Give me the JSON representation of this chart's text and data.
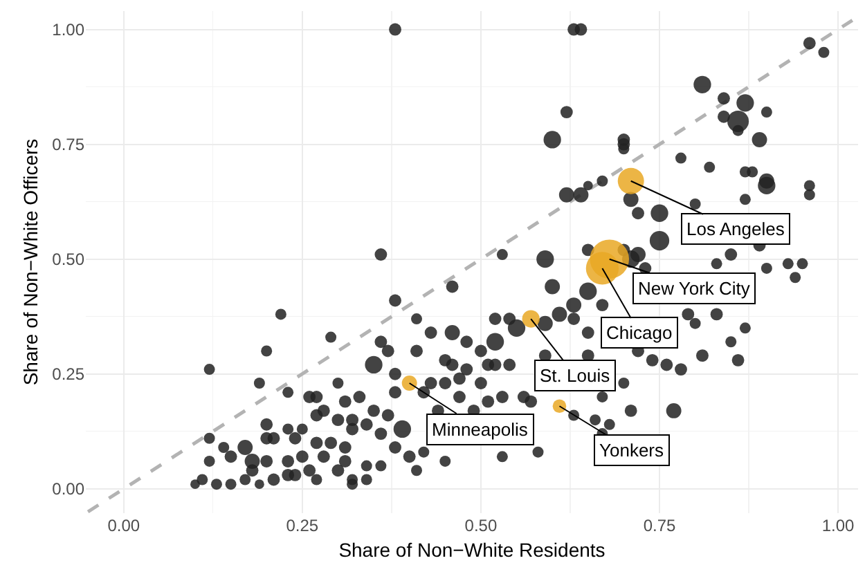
{
  "chart_data": {
    "type": "bubble",
    "xlabel": "Share of Non−White Residents",
    "ylabel": "Share of Non−White Officers",
    "xlim": [
      -0.053,
      1.028
    ],
    "ylim": [
      -0.053,
      1.04
    ],
    "xticks": [
      {
        "value": 0,
        "label": "0.00"
      },
      0.25,
      {
        "value": 0.5,
        "label": "0.50"
      },
      0.75,
      {
        "value": 1,
        "label": "1.00"
      }
    ],
    "yticks": [
      {
        "value": 0,
        "label": "0.00"
      },
      0.25,
      {
        "value": 0.5,
        "label": "0.50"
      },
      0.75,
      {
        "value": 1,
        "label": "1.00"
      }
    ],
    "grid": true,
    "marker": "circle",
    "series": [
      {
        "type": "bubble",
        "color": "#222222",
        "x": [
          0.38,
          0.63,
          0.64,
          0.96,
          0.98,
          0.81,
          0.84,
          0.87,
          0.9,
          0.84,
          0.86,
          0.86,
          0.89,
          0.62,
          0.6,
          0.7,
          0.7,
          0.7,
          0.78,
          0.82,
          0.87,
          0.88,
          0.9,
          0.9,
          0.96,
          0.96,
          0.87,
          0.8,
          0.65,
          0.67,
          0.62,
          0.64,
          0.71,
          0.72,
          0.75,
          0.65,
          0.7,
          0.85,
          0.36,
          0.53,
          0.59,
          0.75,
          0.89,
          0.93,
          0.95,
          0.94,
          0.9,
          0.83,
          0.71,
          0.72,
          0.73,
          0.65,
          0.67,
          0.79,
          0.83,
          0.8,
          0.87,
          0.85,
          0.65,
          0.72,
          0.81,
          0.74,
          0.76,
          0.78,
          0.86,
          0.77,
          0.71,
          0.66,
          0.68,
          0.67,
          0.67,
          0.7,
          0.65,
          0.46,
          0.38,
          0.41,
          0.6,
          0.63,
          0.61,
          0.63,
          0.59,
          0.52,
          0.54,
          0.55,
          0.46,
          0.43,
          0.36,
          0.48,
          0.52,
          0.5,
          0.41,
          0.37,
          0.45,
          0.35,
          0.46,
          0.48,
          0.51,
          0.52,
          0.54,
          0.59,
          0.38,
          0.43,
          0.45,
          0.47,
          0.5,
          0.38,
          0.42,
          0.47,
          0.51,
          0.53,
          0.56,
          0.57,
          0.33,
          0.35,
          0.37,
          0.39,
          0.44,
          0.49,
          0.32,
          0.34,
          0.36,
          0.38,
          0.4,
          0.41,
          0.42,
          0.45,
          0.53,
          0.58,
          0.63,
          0.32,
          0.34,
          0.34,
          0.36,
          0.31,
          0.22,
          0.29,
          0.2,
          0.12,
          0.19,
          0.3,
          0.23,
          0.26,
          0.27,
          0.12,
          0.2,
          0.23,
          0.25,
          0.14,
          0.17,
          0.2,
          0.21,
          0.24,
          0.27,
          0.29,
          0.15,
          0.12,
          0.18,
          0.2,
          0.23,
          0.25,
          0.28,
          0.31,
          0.1,
          0.11,
          0.13,
          0.15,
          0.17,
          0.19,
          0.21,
          0.24,
          0.26,
          0.27,
          0.3,
          0.32,
          0.18,
          0.23,
          0.27,
          0.3,
          0.32,
          0.31,
          0.28
        ],
        "values": [
          1.0,
          1.0,
          1.0,
          0.97,
          0.95,
          0.88,
          0.85,
          0.84,
          0.82,
          0.81,
          0.8,
          0.78,
          0.76,
          0.82,
          0.76,
          0.76,
          0.75,
          0.74,
          0.72,
          0.7,
          0.69,
          0.69,
          0.67,
          0.66,
          0.66,
          0.64,
          0.63,
          0.62,
          0.66,
          0.67,
          0.64,
          0.64,
          0.63,
          0.6,
          0.6,
          0.52,
          0.52,
          0.51,
          0.51,
          0.51,
          0.5,
          0.54,
          0.53,
          0.49,
          0.49,
          0.46,
          0.48,
          0.49,
          0.5,
          0.51,
          0.48,
          0.43,
          0.4,
          0.38,
          0.38,
          0.36,
          0.35,
          0.32,
          0.34,
          0.3,
          0.29,
          0.28,
          0.27,
          0.26,
          0.28,
          0.17,
          0.17,
          0.15,
          0.14,
          0.12,
          0.2,
          0.23,
          0.29,
          0.44,
          0.41,
          0.37,
          0.44,
          0.4,
          0.38,
          0.37,
          0.36,
          0.37,
          0.37,
          0.35,
          0.34,
          0.34,
          0.32,
          0.32,
          0.32,
          0.3,
          0.3,
          0.3,
          0.28,
          0.27,
          0.27,
          0.26,
          0.27,
          0.27,
          0.27,
          0.29,
          0.25,
          0.23,
          0.23,
          0.24,
          0.23,
          0.21,
          0.21,
          0.2,
          0.19,
          0.2,
          0.2,
          0.19,
          0.2,
          0.17,
          0.16,
          0.13,
          0.17,
          0.17,
          0.13,
          0.14,
          0.12,
          0.09,
          0.07,
          0.04,
          0.08,
          0.06,
          0.07,
          0.08,
          0.16,
          0.02,
          0.02,
          0.05,
          0.05,
          0.09,
          0.38,
          0.33,
          0.3,
          0.26,
          0.23,
          0.23,
          0.21,
          0.2,
          0.2,
          0.11,
          0.14,
          0.13,
          0.13,
          0.09,
          0.09,
          0.11,
          0.11,
          0.11,
          0.1,
          0.1,
          0.07,
          0.06,
          0.06,
          0.06,
          0.06,
          0.07,
          0.07,
          0.06,
          0.01,
          0.02,
          0.01,
          0.01,
          0.02,
          0.01,
          0.02,
          0.03,
          0.04,
          0.02,
          0.04,
          0.01,
          0.04,
          0.03,
          0.16,
          0.15,
          0.15,
          0.19,
          0.17
        ],
        "sizes": [
          0.1,
          0.1,
          0.1,
          0.1,
          0.08,
          0.2,
          0.1,
          0.2,
          0.08,
          0.1,
          0.3,
          0.08,
          0.15,
          0.1,
          0.2,
          0.1,
          0.1,
          0.08,
          0.08,
          0.08,
          0.08,
          0.08,
          0.15,
          0.2,
          0.08,
          0.08,
          0.08,
          0.08,
          0.06,
          0.08,
          0.15,
          0.15,
          0.15,
          0.1,
          0.2,
          0.1,
          0.1,
          0.1,
          0.1,
          0.08,
          0.2,
          0.25,
          0.1,
          0.08,
          0.08,
          0.08,
          0.08,
          0.08,
          0.2,
          0.15,
          0.1,
          0.2,
          0.1,
          0.1,
          0.1,
          0.08,
          0.08,
          0.08,
          0.1,
          0.1,
          0.1,
          0.1,
          0.1,
          0.1,
          0.1,
          0.15,
          0.1,
          0.08,
          0.08,
          0.08,
          0.08,
          0.08,
          0.1,
          0.1,
          0.1,
          0.08,
          0.15,
          0.15,
          0.15,
          0.1,
          0.15,
          0.1,
          0.1,
          0.2,
          0.15,
          0.1,
          0.1,
          0.1,
          0.2,
          0.1,
          0.1,
          0.1,
          0.1,
          0.2,
          0.1,
          0.1,
          0.1,
          0.1,
          0.1,
          0.1,
          0.1,
          0.1,
          0.1,
          0.1,
          0.1,
          0.1,
          0.1,
          0.1,
          0.1,
          0.1,
          0.1,
          0.1,
          0.1,
          0.1,
          0.1,
          0.2,
          0.1,
          0.1,
          0.1,
          0.1,
          0.1,
          0.1,
          0.1,
          0.08,
          0.08,
          0.08,
          0.08,
          0.08,
          0.08,
          0.08,
          0.08,
          0.08,
          0.08,
          0.1,
          0.08,
          0.08,
          0.08,
          0.08,
          0.08,
          0.08,
          0.08,
          0.1,
          0.1,
          0.08,
          0.1,
          0.08,
          0.08,
          0.08,
          0.15,
          0.1,
          0.1,
          0.1,
          0.1,
          0.1,
          0.1,
          0.08,
          0.15,
          0.1,
          0.1,
          0.1,
          0.1,
          0.1,
          0.06,
          0.08,
          0.08,
          0.08,
          0.08,
          0.06,
          0.1,
          0.1,
          0.1,
          0.08,
          0.1,
          0.08,
          0.1,
          0.1,
          0.1,
          0.1,
          0.1,
          0.1,
          0.1
        ]
      },
      {
        "type": "bubble",
        "color": "#e9a825",
        "x": [
          0.71,
          0.68,
          0.67,
          0.57,
          0.4,
          0.61
        ],
        "values": [
          0.67,
          0.5,
          0.48,
          0.37,
          0.23,
          0.18
        ],
        "sizes": [
          0.45,
          1,
          0.7,
          0.2,
          0.15,
          0.12
        ]
      },
      {
        "type": "line",
        "color": "#b3b3b3",
        "line_style": "dashed",
        "marker": "none",
        "x": [
          -0.05,
          1.02
        ],
        "values": [
          -0.05,
          1.02
        ]
      }
    ],
    "annotations": [
      {
        "text": "Los Angeles",
        "x": 0.71,
        "y": 0.67
      },
      {
        "text": "New York City",
        "x": 0.68,
        "y": 0.5
      },
      {
        "text": "Chicago",
        "x": 0.67,
        "y": 0.48
      },
      {
        "text": "St. Louis",
        "x": 0.57,
        "y": 0.37
      },
      {
        "text": "Minneapolis",
        "x": 0.4,
        "y": 0.23
      },
      {
        "text": "Yonkers",
        "x": 0.61,
        "y": 0.18
      }
    ]
  }
}
